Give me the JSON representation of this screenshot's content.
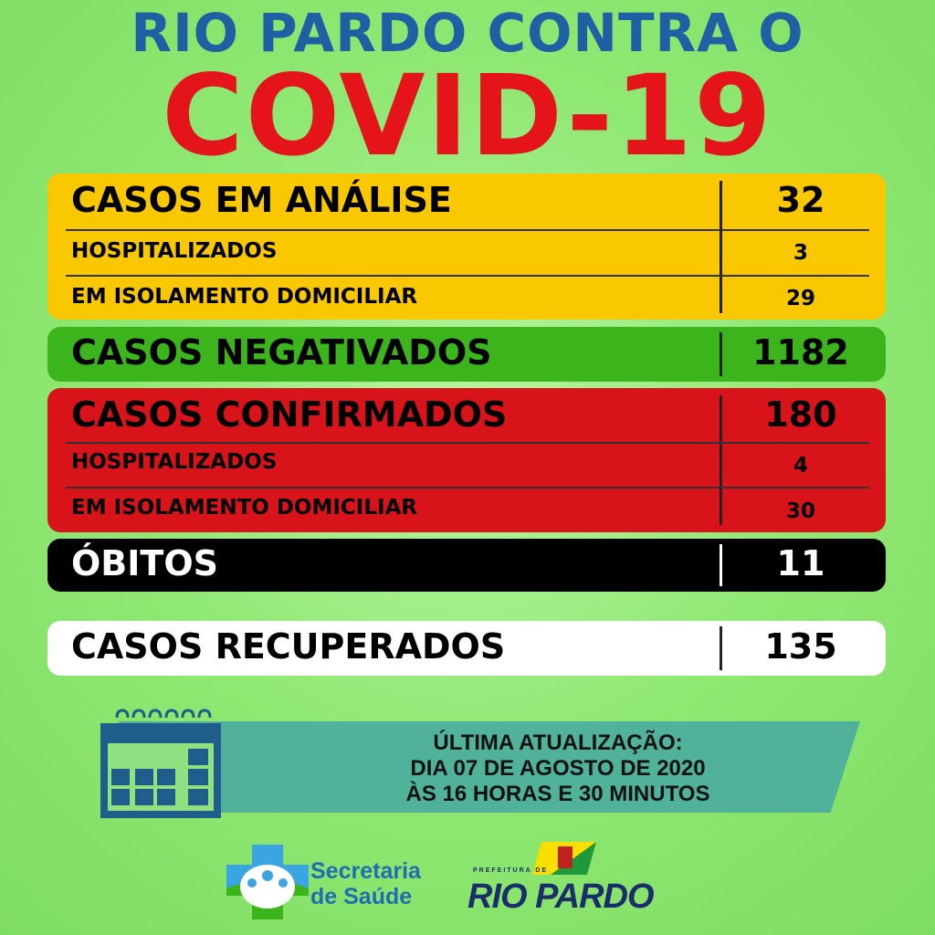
{
  "header": {
    "line1": "RIO PARDO CONTRA O",
    "line2": "COVID-19"
  },
  "colors": {
    "analysis": "#f9c800",
    "negative": "#3cb51c",
    "confirmed": "#d8141a",
    "deaths": "#000000",
    "recovered": "#ffffff",
    "title_blue": "#1f5fa3",
    "title_red": "#e5141b"
  },
  "analysis": {
    "label": "CASOS EM ANÁLISE",
    "value": "32",
    "hospitalized_label": "HOSPITALIZADOS",
    "hospitalized": "3",
    "isolation_label": "EM ISOLAMENTO DOMICILIAR",
    "isolation": "29"
  },
  "negative": {
    "label": "CASOS NEGATIVADOS",
    "value": "1182"
  },
  "confirmed": {
    "label": "CASOS CONFIRMADOS",
    "value": "180",
    "hospitalized_label": "HOSPITALIZADOS",
    "hospitalized": "4",
    "isolation_label": "EM ISOLAMENTO DOMICILIAR",
    "isolation": "30"
  },
  "deaths": {
    "label": "ÓBITOS",
    "value": "11"
  },
  "recovered": {
    "label": "CASOS RECUPERADOS",
    "value": "135"
  },
  "update": {
    "line1": "ÚLTIMA ATUALIZAÇÃO:",
    "line2": "DIA 07 DE AGOSTO DE 2020",
    "line3": "ÀS 16 HORAS E 30 MINUTOS",
    "icon": "calendar-icon"
  },
  "logos": {
    "health": "Secretaria de Saúde",
    "health_line1": "Secretaria",
    "health_line2": "de Saúde",
    "city_small": "PREFEITURA DE",
    "city": "RIO PARDO"
  }
}
